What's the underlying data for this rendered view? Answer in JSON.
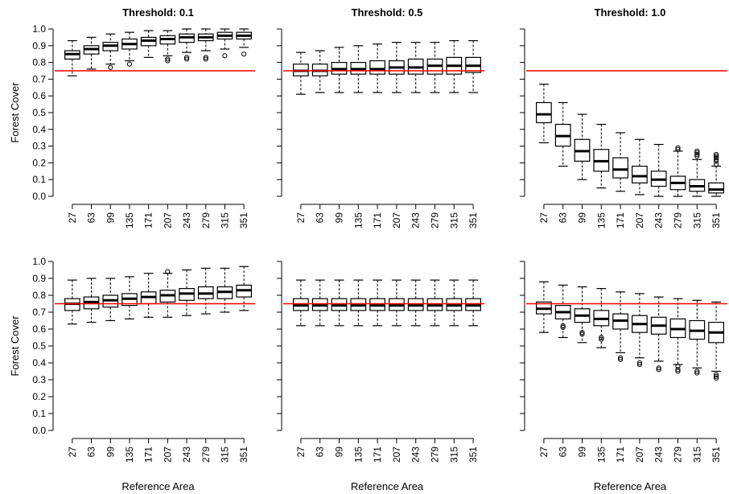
{
  "colors": {
    "reference_line": "#ff0000",
    "box": "#000000",
    "background": "#ffffff"
  },
  "chart_data": {
    "type": "boxplot",
    "layout": "2 rows x 3 columns",
    "reference_line_y": 0.75,
    "x_categories": [
      "27",
      "63",
      "99",
      "135",
      "171",
      "207",
      "243",
      "279",
      "315",
      "351"
    ],
    "x_label": "Reference Area",
    "y_label": "Forest Cover",
    "y_ticks": [
      "0.0",
      "0.1",
      "0.2",
      "0.3",
      "0.4",
      "0.5",
      "0.6",
      "0.7",
      "0.8",
      "0.9",
      "1.0"
    ],
    "ylim": [
      0,
      1
    ],
    "column_titles": [
      "Threshold: 0.1",
      "Threshold: 0.5",
      "Threshold: 1.0"
    ],
    "panels": [
      {
        "row": 1,
        "column": 1,
        "title": "Threshold: 0.1",
        "boxes": [
          {
            "category": "27",
            "whisker_low": 0.72,
            "q1": 0.82,
            "median": 0.85,
            "q3": 0.87,
            "whisker_high": 0.93,
            "outliers": []
          },
          {
            "category": "63",
            "whisker_low": 0.76,
            "q1": 0.85,
            "median": 0.88,
            "q3": 0.9,
            "whisker_high": 0.95,
            "outliers": []
          },
          {
            "category": "99",
            "whisker_low": 0.79,
            "q1": 0.87,
            "median": 0.9,
            "q3": 0.92,
            "whisker_high": 0.97,
            "outliers": [
              0.77
            ]
          },
          {
            "category": "135",
            "whisker_low": 0.81,
            "q1": 0.88,
            "median": 0.91,
            "q3": 0.94,
            "whisker_high": 0.98,
            "outliers": [
              0.79
            ]
          },
          {
            "category": "171",
            "whisker_low": 0.83,
            "q1": 0.9,
            "median": 0.93,
            "q3": 0.95,
            "whisker_high": 0.99,
            "outliers": []
          },
          {
            "category": "207",
            "whisker_low": 0.84,
            "q1": 0.91,
            "median": 0.94,
            "q3": 0.96,
            "whisker_high": 0.99,
            "outliers": [
              0.82,
              0.81
            ]
          },
          {
            "category": "243",
            "whisker_low": 0.86,
            "q1": 0.92,
            "median": 0.95,
            "q3": 0.97,
            "whisker_high": 1.0,
            "outliers": [
              0.83,
              0.82
            ]
          },
          {
            "category": "279",
            "whisker_low": 0.87,
            "q1": 0.93,
            "median": 0.95,
            "q3": 0.97,
            "whisker_high": 1.0,
            "outliers": [
              0.83,
              0.82
            ]
          },
          {
            "category": "315",
            "whisker_low": 0.88,
            "q1": 0.94,
            "median": 0.96,
            "q3": 0.98,
            "whisker_high": 1.0,
            "outliers": [
              0.84
            ]
          },
          {
            "category": "351",
            "whisker_low": 0.89,
            "q1": 0.94,
            "median": 0.96,
            "q3": 0.98,
            "whisker_high": 1.0,
            "outliers": [
              0.85
            ]
          }
        ]
      },
      {
        "row": 1,
        "column": 2,
        "title": "Threshold: 0.5",
        "boxes": [
          {
            "category": "27",
            "whisker_low": 0.61,
            "q1": 0.72,
            "median": 0.75,
            "q3": 0.79,
            "whisker_high": 0.86,
            "outliers": []
          },
          {
            "category": "63",
            "whisker_low": 0.62,
            "q1": 0.72,
            "median": 0.75,
            "q3": 0.79,
            "whisker_high": 0.87,
            "outliers": []
          },
          {
            "category": "99",
            "whisker_low": 0.62,
            "q1": 0.73,
            "median": 0.76,
            "q3": 0.8,
            "whisker_high": 0.89,
            "outliers": []
          },
          {
            "category": "135",
            "whisker_low": 0.62,
            "q1": 0.73,
            "median": 0.76,
            "q3": 0.8,
            "whisker_high": 0.9,
            "outliers": []
          },
          {
            "category": "171",
            "whisker_low": 0.62,
            "q1": 0.73,
            "median": 0.76,
            "q3": 0.81,
            "whisker_high": 0.91,
            "outliers": []
          },
          {
            "category": "207",
            "whisker_low": 0.62,
            "q1": 0.73,
            "median": 0.77,
            "q3": 0.81,
            "whisker_high": 0.92,
            "outliers": []
          },
          {
            "category": "243",
            "whisker_low": 0.62,
            "q1": 0.73,
            "median": 0.77,
            "q3": 0.82,
            "whisker_high": 0.92,
            "outliers": []
          },
          {
            "category": "279",
            "whisker_low": 0.62,
            "q1": 0.73,
            "median": 0.78,
            "q3": 0.82,
            "whisker_high": 0.92,
            "outliers": []
          },
          {
            "category": "315",
            "whisker_low": 0.62,
            "q1": 0.73,
            "median": 0.78,
            "q3": 0.83,
            "whisker_high": 0.93,
            "outliers": []
          },
          {
            "category": "351",
            "whisker_low": 0.62,
            "q1": 0.74,
            "median": 0.78,
            "q3": 0.83,
            "whisker_high": 0.93,
            "outliers": []
          }
        ]
      },
      {
        "row": 1,
        "column": 3,
        "title": "Threshold: 1.0",
        "boxes": [
          {
            "category": "27",
            "whisker_low": 0.32,
            "q1": 0.44,
            "median": 0.49,
            "q3": 0.56,
            "whisker_high": 0.67,
            "outliers": []
          },
          {
            "category": "63",
            "whisker_low": 0.18,
            "q1": 0.3,
            "median": 0.36,
            "q3": 0.43,
            "whisker_high": 0.56,
            "outliers": []
          },
          {
            "category": "99",
            "whisker_low": 0.1,
            "q1": 0.21,
            "median": 0.27,
            "q3": 0.34,
            "whisker_high": 0.49,
            "outliers": []
          },
          {
            "category": "135",
            "whisker_low": 0.05,
            "q1": 0.15,
            "median": 0.21,
            "q3": 0.28,
            "whisker_high": 0.43,
            "outliers": []
          },
          {
            "category": "171",
            "whisker_low": 0.03,
            "q1": 0.11,
            "median": 0.16,
            "q3": 0.23,
            "whisker_high": 0.38,
            "outliers": []
          },
          {
            "category": "207",
            "whisker_low": 0.01,
            "q1": 0.08,
            "median": 0.12,
            "q3": 0.18,
            "whisker_high": 0.34,
            "outliers": []
          },
          {
            "category": "243",
            "whisker_low": 0.0,
            "q1": 0.06,
            "median": 0.1,
            "q3": 0.15,
            "whisker_high": 0.31,
            "outliers": []
          },
          {
            "category": "279",
            "whisker_low": 0.0,
            "q1": 0.04,
            "median": 0.08,
            "q3": 0.12,
            "whisker_high": 0.27,
            "outliers": [
              0.28,
              0.29
            ]
          },
          {
            "category": "315",
            "whisker_low": 0.0,
            "q1": 0.03,
            "median": 0.06,
            "q3": 0.1,
            "whisker_high": 0.22,
            "outliers": [
              0.24,
              0.25,
              0.26,
              0.27
            ]
          },
          {
            "category": "351",
            "whisker_low": 0.0,
            "q1": 0.02,
            "median": 0.04,
            "q3": 0.08,
            "whisker_high": 0.18,
            "outliers": [
              0.19,
              0.21,
              0.22,
              0.23,
              0.24,
              0.25
            ]
          }
        ]
      },
      {
        "row": 2,
        "column": 1,
        "title": "",
        "boxes": [
          {
            "category": "27",
            "whisker_low": 0.63,
            "q1": 0.71,
            "median": 0.75,
            "q3": 0.78,
            "whisker_high": 0.89,
            "outliers": []
          },
          {
            "category": "63",
            "whisker_low": 0.64,
            "q1": 0.72,
            "median": 0.76,
            "q3": 0.79,
            "whisker_high": 0.9,
            "outliers": []
          },
          {
            "category": "99",
            "whisker_low": 0.65,
            "q1": 0.73,
            "median": 0.77,
            "q3": 0.8,
            "whisker_high": 0.9,
            "outliers": []
          },
          {
            "category": "135",
            "whisker_low": 0.66,
            "q1": 0.74,
            "median": 0.78,
            "q3": 0.81,
            "whisker_high": 0.91,
            "outliers": []
          },
          {
            "category": "171",
            "whisker_low": 0.67,
            "q1": 0.75,
            "median": 0.79,
            "q3": 0.82,
            "whisker_high": 0.93,
            "outliers": []
          },
          {
            "category": "207",
            "whisker_low": 0.67,
            "q1": 0.76,
            "median": 0.8,
            "q3": 0.83,
            "whisker_high": 0.93,
            "outliers": [
              0.94
            ]
          },
          {
            "category": "243",
            "whisker_low": 0.68,
            "q1": 0.77,
            "median": 0.81,
            "q3": 0.84,
            "whisker_high": 0.95,
            "outliers": []
          },
          {
            "category": "279",
            "whisker_low": 0.69,
            "q1": 0.78,
            "median": 0.81,
            "q3": 0.85,
            "whisker_high": 0.96,
            "outliers": []
          },
          {
            "category": "315",
            "whisker_low": 0.7,
            "q1": 0.78,
            "median": 0.82,
            "q3": 0.85,
            "whisker_high": 0.96,
            "outliers": []
          },
          {
            "category": "351",
            "whisker_low": 0.71,
            "q1": 0.79,
            "median": 0.83,
            "q3": 0.86,
            "whisker_high": 0.97,
            "outliers": []
          }
        ]
      },
      {
        "row": 2,
        "column": 2,
        "title": "",
        "boxes": [
          {
            "category": "27",
            "whisker_low": 0.62,
            "q1": 0.71,
            "median": 0.74,
            "q3": 0.78,
            "whisker_high": 0.89,
            "outliers": []
          },
          {
            "category": "63",
            "whisker_low": 0.62,
            "q1": 0.71,
            "median": 0.74,
            "q3": 0.78,
            "whisker_high": 0.89,
            "outliers": []
          },
          {
            "category": "99",
            "whisker_low": 0.62,
            "q1": 0.71,
            "median": 0.74,
            "q3": 0.78,
            "whisker_high": 0.89,
            "outliers": []
          },
          {
            "category": "135",
            "whisker_low": 0.62,
            "q1": 0.71,
            "median": 0.74,
            "q3": 0.78,
            "whisker_high": 0.89,
            "outliers": []
          },
          {
            "category": "171",
            "whisker_low": 0.62,
            "q1": 0.71,
            "median": 0.74,
            "q3": 0.78,
            "whisker_high": 0.89,
            "outliers": []
          },
          {
            "category": "207",
            "whisker_low": 0.62,
            "q1": 0.71,
            "median": 0.74,
            "q3": 0.78,
            "whisker_high": 0.89,
            "outliers": []
          },
          {
            "category": "243",
            "whisker_low": 0.62,
            "q1": 0.71,
            "median": 0.74,
            "q3": 0.78,
            "whisker_high": 0.89,
            "outliers": []
          },
          {
            "category": "279",
            "whisker_low": 0.62,
            "q1": 0.71,
            "median": 0.74,
            "q3": 0.78,
            "whisker_high": 0.89,
            "outliers": []
          },
          {
            "category": "315",
            "whisker_low": 0.62,
            "q1": 0.71,
            "median": 0.74,
            "q3": 0.78,
            "whisker_high": 0.89,
            "outliers": []
          },
          {
            "category": "351",
            "whisker_low": 0.62,
            "q1": 0.71,
            "median": 0.74,
            "q3": 0.78,
            "whisker_high": 0.89,
            "outliers": []
          }
        ]
      },
      {
        "row": 2,
        "column": 3,
        "title": "",
        "boxes": [
          {
            "category": "27",
            "whisker_low": 0.58,
            "q1": 0.69,
            "median": 0.72,
            "q3": 0.76,
            "whisker_high": 0.88,
            "outliers": []
          },
          {
            "category": "63",
            "whisker_low": 0.55,
            "q1": 0.66,
            "median": 0.7,
            "q3": 0.74,
            "whisker_high": 0.86,
            "outliers": [
              0.62,
              0.61
            ]
          },
          {
            "category": "99",
            "whisker_low": 0.52,
            "q1": 0.64,
            "median": 0.68,
            "q3": 0.72,
            "whisker_high": 0.85,
            "outliers": [
              0.58,
              0.57
            ]
          },
          {
            "category": "135",
            "whisker_low": 0.49,
            "q1": 0.62,
            "median": 0.66,
            "q3": 0.71,
            "whisker_high": 0.84,
            "outliers": [
              0.55,
              0.54
            ]
          },
          {
            "category": "171",
            "whisker_low": 0.46,
            "q1": 0.6,
            "median": 0.65,
            "q3": 0.69,
            "whisker_high": 0.82,
            "outliers": [
              0.43,
              0.42
            ]
          },
          {
            "category": "207",
            "whisker_low": 0.43,
            "q1": 0.58,
            "median": 0.63,
            "q3": 0.68,
            "whisker_high": 0.81,
            "outliers": [
              0.4,
              0.39
            ]
          },
          {
            "category": "243",
            "whisker_low": 0.41,
            "q1": 0.57,
            "median": 0.62,
            "q3": 0.67,
            "whisker_high": 0.79,
            "outliers": [
              0.37,
              0.36
            ]
          },
          {
            "category": "279",
            "whisker_low": 0.39,
            "q1": 0.55,
            "median": 0.6,
            "q3": 0.66,
            "whisker_high": 0.78,
            "outliers": [
              0.38,
              0.36,
              0.35
            ]
          },
          {
            "category": "315",
            "whisker_low": 0.37,
            "q1": 0.54,
            "median": 0.59,
            "q3": 0.65,
            "whisker_high": 0.77,
            "outliers": [
              0.35,
              0.34
            ]
          },
          {
            "category": "351",
            "whisker_low": 0.35,
            "q1": 0.52,
            "median": 0.58,
            "q3": 0.64,
            "whisker_high": 0.76,
            "outliers": [
              0.33,
              0.32,
              0.31
            ]
          }
        ]
      }
    ]
  }
}
